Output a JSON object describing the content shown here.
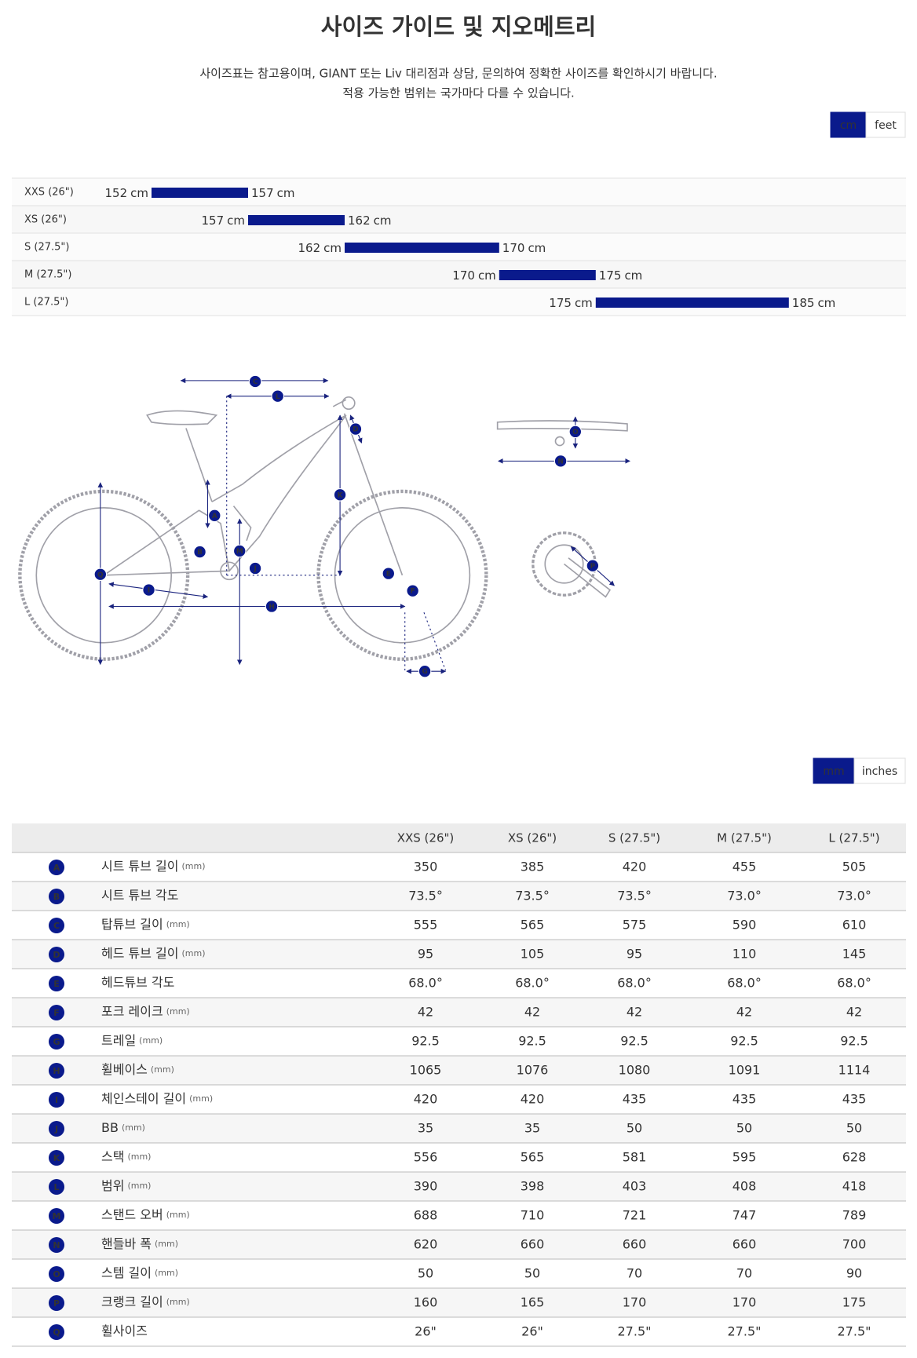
{
  "page_title": "사이즈 가이드 및 지오메트리",
  "intro": [
    "사이즈표는 참고용이며, GIANT 또는 Liv 대리점과 상담, 문의하여 정확한 사이즈를 확인하시기 바랍니다.",
    "적용 가능한 범위는 국가마다 다를 수 있습니다."
  ],
  "size_guide": {
    "units": [
      "cm",
      "feet"
    ],
    "unit": "cm",
    "rows": [
      {
        "label": "XXS (26\")",
        "min": 152,
        "max": 157
      },
      {
        "label": "XS (26\")",
        "min": 157,
        "max": 162
      },
      {
        "label": "S (27.5\")",
        "min": 162,
        "max": 170
      },
      {
        "label": "M (27.5\")",
        "min": 170,
        "max": 175
      },
      {
        "label": "L (27.5\")",
        "min": 175,
        "max": 185
      }
    ]
  },
  "geometry": {
    "units": [
      "mm",
      "inches"
    ],
    "columns": [
      "XXS (26\")",
      "XS (26\")",
      "S (27.5\")",
      "M (27.5\")",
      "L (27.5\")"
    ],
    "rows": [
      {
        "letter": "A",
        "name": "시트 튜브 길이",
        "unit": "(mm)",
        "values": [
          350,
          385,
          420,
          455,
          505
        ]
      },
      {
        "letter": "B",
        "name": "시트 튜브 각도",
        "values": [
          "73.5°",
          "73.5°",
          "73.5°",
          "73.0°",
          "73.0°"
        ]
      },
      {
        "letter": "C",
        "name": "탑튜브 길이",
        "unit": "(mm)",
        "values": [
          555,
          565,
          575,
          590,
          610
        ]
      },
      {
        "letter": "D",
        "name": "헤드 튜브 길이",
        "unit": "(mm)",
        "values": [
          95,
          105,
          95,
          110,
          145
        ]
      },
      {
        "letter": "E",
        "name": "헤드튜브 각도",
        "values": [
          "68.0°",
          "68.0°",
          "68.0°",
          "68.0°",
          "68.0°"
        ]
      },
      {
        "letter": "F",
        "name": "포크 레이크",
        "unit": "(mm)",
        "values": [
          42,
          42,
          42,
          42,
          42
        ]
      },
      {
        "letter": "G",
        "name": "트레일",
        "unit": "(mm)",
        "values": [
          92.5,
          92.5,
          92.5,
          92.5,
          92.5
        ]
      },
      {
        "letter": "H",
        "name": "휠베이스",
        "unit": "(mm)",
        "values": [
          1065,
          1076,
          1080,
          1091,
          1114
        ]
      },
      {
        "letter": "I",
        "name": "체인스테이 길이",
        "unit": "(mm)",
        "values": [
          420,
          420,
          435,
          435,
          435
        ]
      },
      {
        "letter": "J",
        "name": "BB",
        "unit": "(mm)",
        "values": [
          35,
          35,
          50,
          50,
          50
        ]
      },
      {
        "letter": "K",
        "name": "스택",
        "unit": "(mm)",
        "values": [
          556,
          565,
          581,
          595,
          628
        ]
      },
      {
        "letter": "L",
        "name": "범위",
        "unit": "(mm)",
        "values": [
          390,
          398,
          403,
          408,
          418
        ]
      },
      {
        "letter": "M",
        "name": "스탠드 오버",
        "unit": "(mm)",
        "values": [
          688,
          710,
          721,
          747,
          789
        ]
      },
      {
        "letter": "N",
        "name": "핸들바 폭",
        "unit": "(mm)",
        "values": [
          620,
          660,
          660,
          660,
          700
        ]
      },
      {
        "letter": "O",
        "name": "스템 길이",
        "unit": "(mm)",
        "values": [
          50,
          50,
          70,
          70,
          90
        ]
      },
      {
        "letter": "P",
        "name": "크랭크 길이",
        "unit": "(mm)",
        "values": [
          160,
          165,
          170,
          170,
          175
        ]
      },
      {
        "letter": "Q",
        "name": "휠사이즈",
        "values": [
          "26\"",
          "26\"",
          "27.5\"",
          "27.5\"",
          "27.5\""
        ]
      }
    ]
  }
}
